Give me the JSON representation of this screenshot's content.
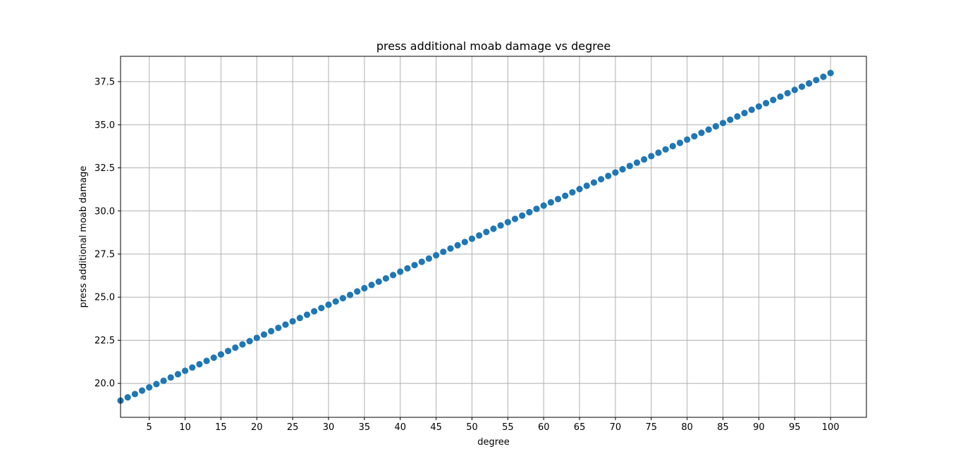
{
  "chart_data": {
    "type": "scatter",
    "title": "press additional moab damage vs degree",
    "xlabel": "degree",
    "ylabel": "press additional moab damage",
    "xlim": [
      1,
      105
    ],
    "ylim": [
      18.03,
      38.97
    ],
    "x_ticks": [
      5,
      10,
      15,
      20,
      25,
      30,
      35,
      40,
      45,
      50,
      55,
      60,
      65,
      70,
      75,
      80,
      85,
      90,
      95,
      100
    ],
    "y_ticks": [
      20.0,
      22.5,
      25.0,
      27.5,
      30.0,
      32.5,
      35.0,
      37.5
    ],
    "grid": true,
    "colors": {
      "marker": "#1f77b4"
    },
    "series": [
      {
        "x": [
          1,
          2,
          3,
          4,
          5,
          6,
          7,
          8,
          9,
          10,
          11,
          12,
          13,
          14,
          15,
          16,
          17,
          18,
          19,
          20,
          21,
          22,
          23,
          24,
          25,
          26,
          27,
          28,
          29,
          30,
          31,
          32,
          33,
          34,
          35,
          36,
          37,
          38,
          39,
          40,
          41,
          42,
          43,
          44,
          45,
          46,
          47,
          48,
          49,
          50,
          51,
          52,
          53,
          54,
          55,
          56,
          57,
          58,
          59,
          60,
          61,
          62,
          63,
          64,
          65,
          66,
          67,
          68,
          69,
          70,
          71,
          72,
          73,
          74,
          75,
          76,
          77,
          78,
          79,
          80,
          81,
          82,
          83,
          84,
          85,
          86,
          87,
          88,
          89,
          90,
          91,
          92,
          93,
          94,
          95,
          96,
          97,
          98,
          99,
          100
        ],
        "y": [
          19.0,
          19.19,
          19.38,
          19.58,
          19.77,
          19.96,
          20.15,
          20.34,
          20.53,
          20.73,
          20.92,
          21.11,
          21.3,
          21.49,
          21.68,
          21.88,
          22.07,
          22.26,
          22.45,
          22.64,
          22.83,
          23.03,
          23.22,
          23.41,
          23.6,
          23.79,
          23.98,
          24.18,
          24.37,
          24.56,
          24.75,
          24.94,
          25.13,
          25.33,
          25.52,
          25.71,
          25.9,
          26.09,
          26.28,
          26.48,
          26.67,
          26.86,
          27.05,
          27.24,
          27.43,
          27.63,
          27.82,
          28.01,
          28.2,
          28.39,
          28.58,
          28.78,
          28.97,
          29.16,
          29.35,
          29.54,
          29.73,
          29.93,
          30.12,
          30.31,
          30.5,
          30.69,
          30.88,
          31.08,
          31.27,
          31.46,
          31.65,
          31.84,
          32.03,
          32.23,
          32.42,
          32.61,
          32.8,
          32.99,
          33.18,
          33.38,
          33.57,
          33.76,
          33.95,
          34.14,
          34.33,
          34.53,
          34.72,
          34.91,
          35.1,
          35.29,
          35.48,
          35.68,
          35.87,
          36.06,
          36.25,
          36.44,
          36.63,
          36.83,
          37.02,
          37.21,
          37.4,
          37.59,
          37.78,
          38.0
        ]
      }
    ]
  }
}
